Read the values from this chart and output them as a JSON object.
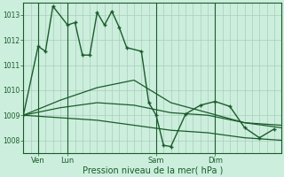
{
  "bg_color": "#cceedd",
  "grid_color": "#aaccbb",
  "line_color": "#1a5c2a",
  "xlabel": "Pression niveau de la mer( hPa )",
  "yticks": [
    1008,
    1009,
    1010,
    1011,
    1012,
    1013
  ],
  "ylim": [
    1007.5,
    1013.5
  ],
  "xtick_labels": [
    "Ven",
    "Lun",
    "Sam",
    "Dim"
  ],
  "xtick_positions": [
    2,
    6,
    18,
    26
  ],
  "xlim": [
    0,
    35
  ],
  "series1_x": [
    0,
    2,
    3,
    4,
    6,
    7,
    8,
    9,
    10,
    11,
    12,
    13,
    14,
    16,
    17,
    18,
    19,
    20,
    22,
    24,
    26,
    28,
    30,
    32,
    34
  ],
  "series1_y": [
    1009.0,
    1011.75,
    1011.55,
    1013.35,
    1012.6,
    1012.7,
    1011.4,
    1011.4,
    1013.1,
    1012.6,
    1013.15,
    1012.5,
    1011.7,
    1011.55,
    1009.5,
    1009.0,
    1007.8,
    1007.75,
    1009.05,
    1009.4,
    1009.55,
    1009.35,
    1008.5,
    1008.1,
    1008.45
  ],
  "series2_x": [
    0,
    5,
    10,
    15,
    20,
    25,
    30,
    35
  ],
  "series2_y": [
    1009.0,
    1009.6,
    1010.1,
    1010.4,
    1009.5,
    1009.1,
    1008.7,
    1008.5
  ],
  "series3_x": [
    0,
    5,
    10,
    15,
    20,
    25,
    30,
    35
  ],
  "series3_y": [
    1009.0,
    1009.3,
    1009.5,
    1009.4,
    1009.1,
    1009.0,
    1008.7,
    1008.6
  ],
  "series4_x": [
    0,
    5,
    10,
    15,
    20,
    25,
    30,
    35
  ],
  "series4_y": [
    1009.0,
    1008.9,
    1008.8,
    1008.6,
    1008.4,
    1008.3,
    1008.1,
    1008.0
  ],
  "vline_x": [
    2,
    6,
    18,
    26
  ],
  "figsize": [
    3.2,
    2.0
  ],
  "dpi": 100
}
